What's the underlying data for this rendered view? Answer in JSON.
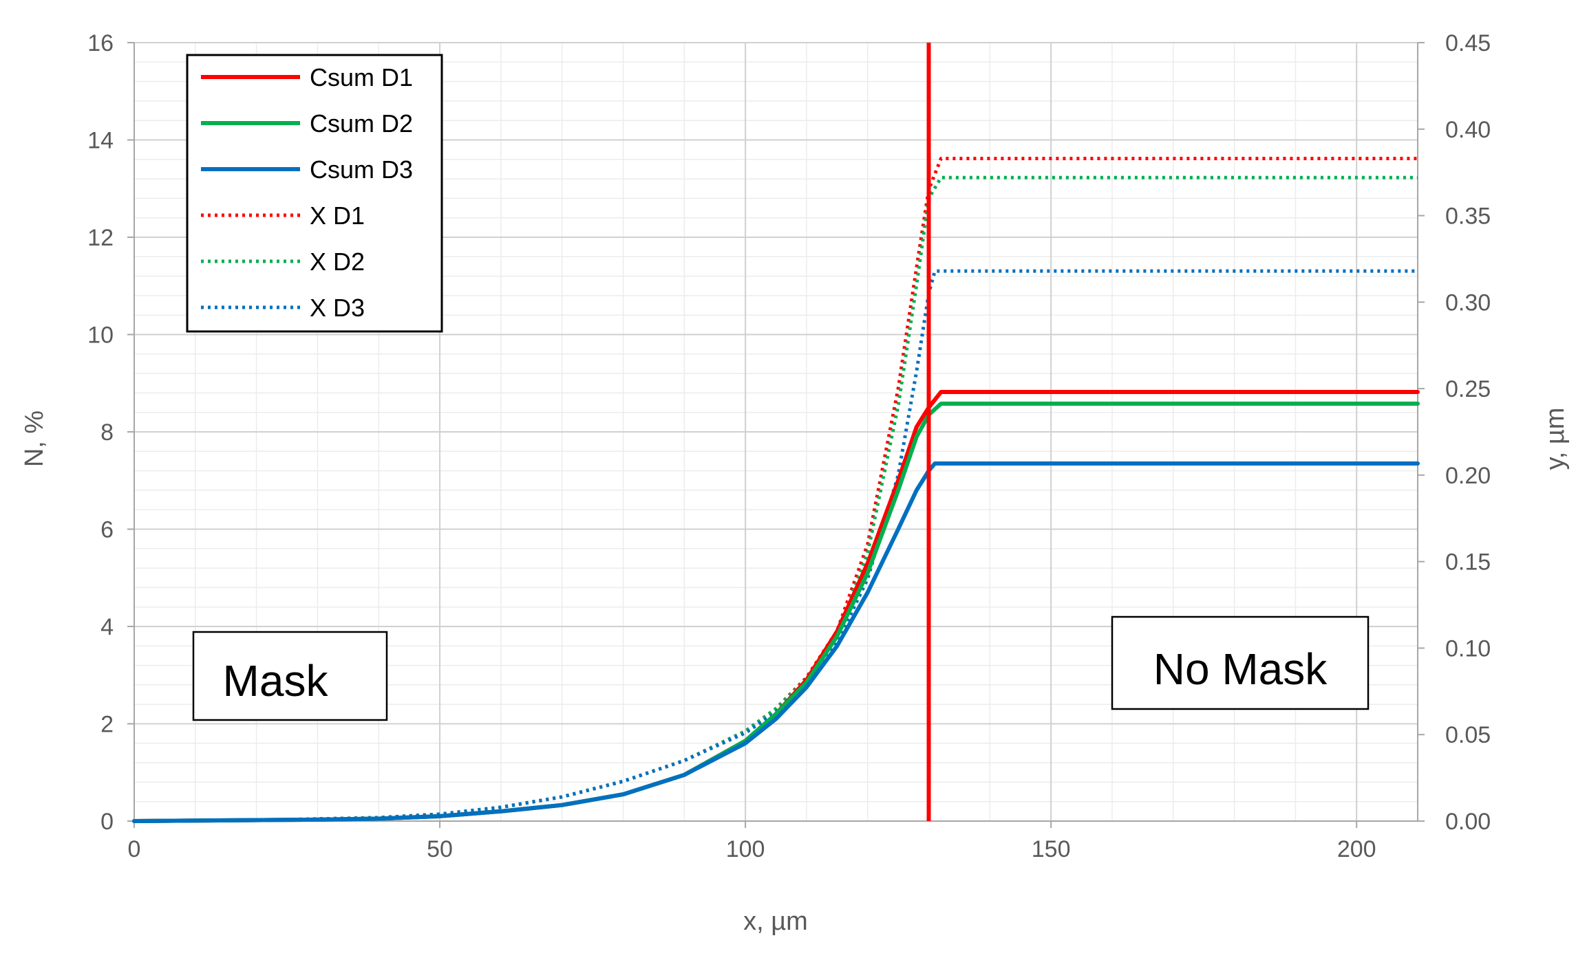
{
  "chart_data": {
    "type": "line",
    "title": "",
    "xlabel": "x, µm",
    "ylabel_left": "N, %",
    "ylabel_right": "y, µm",
    "xlim": [
      0,
      210
    ],
    "ylim_left": [
      0,
      16
    ],
    "ylim_right": [
      0,
      0.45
    ],
    "xticks": [
      "0",
      "50",
      "100",
      "150",
      "200"
    ],
    "yticks_left": [
      "0",
      "2",
      "4",
      "6",
      "8",
      "10",
      "12",
      "14",
      "16"
    ],
    "yticks_right": [
      "0.00",
      "0.05",
      "0.10",
      "0.15",
      "0.20",
      "0.25",
      "0.30",
      "0.35",
      "0.40",
      "0.45"
    ],
    "grid": true,
    "legend_position": "top-left",
    "vertical_marker": {
      "x": 130,
      "color": "#ff0000"
    },
    "series": [
      {
        "name": "Csum D1",
        "axis": "left",
        "style": "solid",
        "color": "#ff0000",
        "points": [
          [
            0,
            0
          ],
          [
            30,
            0.03
          ],
          [
            40,
            0.05
          ],
          [
            50,
            0.1
          ],
          [
            60,
            0.2
          ],
          [
            70,
            0.33
          ],
          [
            80,
            0.55
          ],
          [
            90,
            0.95
          ],
          [
            100,
            1.65
          ],
          [
            105,
            2.2
          ],
          [
            110,
            2.9
          ],
          [
            115,
            3.9
          ],
          [
            120,
            5.3
          ],
          [
            125,
            7.0
          ],
          [
            128,
            8.1
          ],
          [
            130,
            8.5
          ],
          [
            132,
            8.82
          ],
          [
            210,
            8.82
          ]
        ]
      },
      {
        "name": "Csum D2",
        "axis": "left",
        "style": "solid",
        "color": "#00b050",
        "points": [
          [
            0,
            0
          ],
          [
            30,
            0.03
          ],
          [
            40,
            0.05
          ],
          [
            50,
            0.1
          ],
          [
            60,
            0.2
          ],
          [
            70,
            0.33
          ],
          [
            80,
            0.55
          ],
          [
            90,
            0.95
          ],
          [
            100,
            1.65
          ],
          [
            105,
            2.2
          ],
          [
            110,
            2.85
          ],
          [
            115,
            3.8
          ],
          [
            120,
            5.1
          ],
          [
            125,
            6.8
          ],
          [
            128,
            7.9
          ],
          [
            130,
            8.35
          ],
          [
            132,
            8.58
          ],
          [
            210,
            8.58
          ]
        ]
      },
      {
        "name": "Csum D3",
        "axis": "left",
        "style": "solid",
        "color": "#0070c0",
        "points": [
          [
            0,
            0
          ],
          [
            30,
            0.03
          ],
          [
            40,
            0.05
          ],
          [
            50,
            0.1
          ],
          [
            60,
            0.2
          ],
          [
            70,
            0.33
          ],
          [
            80,
            0.55
          ],
          [
            90,
            0.95
          ],
          [
            100,
            1.6
          ],
          [
            105,
            2.1
          ],
          [
            110,
            2.75
          ],
          [
            115,
            3.6
          ],
          [
            120,
            4.7
          ],
          [
            125,
            6.0
          ],
          [
            128,
            6.8
          ],
          [
            130,
            7.2
          ],
          [
            131,
            7.35
          ],
          [
            210,
            7.35
          ]
        ]
      },
      {
        "name": "X D1",
        "axis": "right",
        "style": "dotted",
        "color": "#ff0000",
        "points": [
          [
            0,
            0
          ],
          [
            20,
            0.0005
          ],
          [
            40,
            0.002
          ],
          [
            50,
            0.004
          ],
          [
            60,
            0.008
          ],
          [
            70,
            0.014
          ],
          [
            80,
            0.023
          ],
          [
            90,
            0.035
          ],
          [
            100,
            0.052
          ],
          [
            105,
            0.065
          ],
          [
            110,
            0.083
          ],
          [
            115,
            0.11
          ],
          [
            120,
            0.16
          ],
          [
            125,
            0.25
          ],
          [
            128,
            0.32
          ],
          [
            130,
            0.365
          ],
          [
            132,
            0.383
          ],
          [
            210,
            0.383
          ]
        ]
      },
      {
        "name": "X D2",
        "axis": "right",
        "style": "dotted",
        "color": "#00b050",
        "points": [
          [
            0,
            0
          ],
          [
            20,
            0.0005
          ],
          [
            40,
            0.002
          ],
          [
            50,
            0.004
          ],
          [
            60,
            0.008
          ],
          [
            70,
            0.014
          ],
          [
            80,
            0.023
          ],
          [
            90,
            0.035
          ],
          [
            100,
            0.052
          ],
          [
            105,
            0.065
          ],
          [
            110,
            0.082
          ],
          [
            115,
            0.108
          ],
          [
            120,
            0.155
          ],
          [
            125,
            0.24
          ],
          [
            128,
            0.31
          ],
          [
            130,
            0.36
          ],
          [
            132,
            0.372
          ],
          [
            210,
            0.372
          ]
        ]
      },
      {
        "name": "X D3",
        "axis": "right",
        "style": "dotted",
        "color": "#0070c0",
        "points": [
          [
            0,
            0
          ],
          [
            20,
            0.0005
          ],
          [
            40,
            0.002
          ],
          [
            50,
            0.004
          ],
          [
            60,
            0.008
          ],
          [
            70,
            0.014
          ],
          [
            80,
            0.023
          ],
          [
            90,
            0.035
          ],
          [
            100,
            0.051
          ],
          [
            105,
            0.063
          ],
          [
            110,
            0.08
          ],
          [
            115,
            0.103
          ],
          [
            120,
            0.14
          ],
          [
            125,
            0.2
          ],
          [
            128,
            0.26
          ],
          [
            130,
            0.305
          ],
          [
            131,
            0.318
          ],
          [
            210,
            0.318
          ]
        ]
      }
    ],
    "annotations": [
      {
        "text": "Mask"
      },
      {
        "text": "No Mask"
      }
    ]
  }
}
